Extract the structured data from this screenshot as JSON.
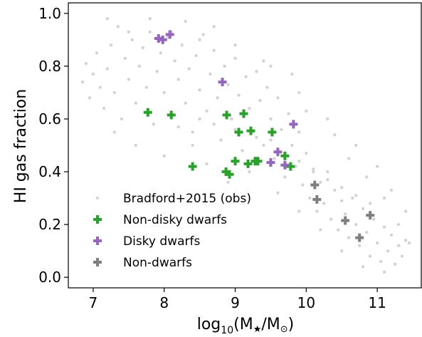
{
  "chart_data": {
    "type": "scatter",
    "xlabel_base": "log",
    "xlabel_sub": "10",
    "xlabel_rest": "(M",
    "xlabel_star": "★",
    "xlabel_slash": "/M",
    "xlabel_sun": "⊙",
    "xlabel_close": ")",
    "ylabel": "HI gas fraction",
    "xlim": [
      6.65,
      11.62
    ],
    "ylim": [
      -0.04,
      1.04
    ],
    "xticks": [
      7,
      8,
      9,
      10,
      11
    ],
    "xtick_labels": [
      "7",
      "8",
      "9",
      "10",
      "11"
    ],
    "yticks": [
      0.0,
      0.2,
      0.4,
      0.6,
      0.8,
      1.0
    ],
    "ytick_labels": [
      "0.0",
      "0.2",
      "0.4",
      "0.6",
      "0.8",
      "1.0"
    ],
    "legend_position": "lower-left",
    "series": [
      {
        "name": "Bradford+2015 (obs)",
        "marker": "dot",
        "color": "#d3d3d3",
        "points": [
          [
            6.85,
            0.74
          ],
          [
            6.9,
            0.81
          ],
          [
            6.95,
            0.68
          ],
          [
            7.0,
            0.77
          ],
          [
            7.05,
            0.85
          ],
          [
            7.1,
            0.72
          ],
          [
            7.15,
            0.64
          ],
          [
            7.2,
            0.79
          ],
          [
            7.25,
            0.88
          ],
          [
            7.3,
            0.7
          ],
          [
            7.35,
            0.95
          ],
          [
            7.4,
            0.6
          ],
          [
            7.45,
            0.83
          ],
          [
            7.5,
            0.75
          ],
          [
            7.55,
            0.9
          ],
          [
            7.6,
            0.66
          ],
          [
            7.65,
            0.8
          ],
          [
            7.7,
            0.87
          ],
          [
            7.75,
            0.72
          ],
          [
            7.8,
            0.93
          ],
          [
            7.85,
            0.58
          ],
          [
            7.9,
            0.78
          ],
          [
            7.95,
            0.85
          ],
          [
            8.0,
            0.7
          ],
          [
            8.05,
            0.91
          ],
          [
            8.1,
            0.62
          ],
          [
            8.15,
            0.82
          ],
          [
            8.2,
            0.75
          ],
          [
            8.25,
            0.88
          ],
          [
            8.3,
            0.66
          ],
          [
            8.35,
            0.79
          ],
          [
            8.4,
            0.55
          ],
          [
            8.45,
            0.84
          ],
          [
            8.5,
            0.71
          ],
          [
            8.55,
            0.92
          ],
          [
            8.6,
            0.63
          ],
          [
            8.65,
            0.77
          ],
          [
            8.7,
            0.86
          ],
          [
            8.75,
            0.68
          ],
          [
            8.8,
            0.52
          ],
          [
            8.85,
            0.8
          ],
          [
            8.9,
            0.73
          ],
          [
            8.95,
            0.6
          ],
          [
            9.0,
            0.83
          ],
          [
            9.05,
            0.69
          ],
          [
            9.1,
            0.48
          ],
          [
            9.15,
            0.76
          ],
          [
            9.2,
            0.64
          ],
          [
            9.25,
            0.55
          ],
          [
            9.3,
            0.78
          ],
          [
            9.35,
            0.67
          ],
          [
            9.4,
            0.5
          ],
          [
            9.45,
            0.72
          ],
          [
            9.5,
            0.6
          ],
          [
            9.55,
            0.45
          ],
          [
            9.6,
            0.68
          ],
          [
            9.65,
            0.56
          ],
          [
            9.7,
            0.38
          ],
          [
            9.75,
            0.62
          ],
          [
            9.8,
            0.5
          ],
          [
            9.85,
            0.42
          ],
          [
            9.9,
            0.55
          ],
          [
            9.95,
            0.35
          ],
          [
            10.0,
            0.47
          ],
          [
            10.05,
            0.3
          ],
          [
            10.1,
            0.41
          ],
          [
            10.15,
            0.25
          ],
          [
            10.2,
            0.36
          ],
          [
            10.25,
            0.28
          ],
          [
            10.3,
            0.4
          ],
          [
            10.35,
            0.22
          ],
          [
            10.4,
            0.33
          ],
          [
            10.45,
            0.18
          ],
          [
            10.5,
            0.29
          ],
          [
            10.55,
            0.24
          ],
          [
            10.6,
            0.15
          ],
          [
            10.65,
            0.3
          ],
          [
            10.7,
            0.2
          ],
          [
            10.75,
            0.12
          ],
          [
            10.8,
            0.26
          ],
          [
            10.85,
            0.17
          ],
          [
            10.9,
            0.08
          ],
          [
            10.95,
            0.22
          ],
          [
            11.0,
            0.13
          ],
          [
            11.05,
            0.06
          ],
          [
            11.1,
            0.19
          ],
          [
            11.15,
            0.1
          ],
          [
            11.2,
            0.16
          ],
          [
            11.25,
            0.05
          ],
          [
            11.3,
            0.12
          ],
          [
            11.35,
            0.08
          ],
          [
            11.4,
            0.14
          ],
          [
            7.8,
            0.98
          ],
          [
            8.3,
            0.97
          ],
          [
            8.7,
            0.95
          ],
          [
            9.4,
            0.82
          ],
          [
            9.9,
            0.7
          ],
          [
            10.3,
            0.6
          ],
          [
            10.7,
            0.5
          ],
          [
            11.0,
            0.42
          ],
          [
            11.2,
            0.33
          ],
          [
            11.4,
            0.25
          ],
          [
            7.3,
            0.55
          ],
          [
            7.6,
            0.5
          ],
          [
            8.0,
            0.46
          ],
          [
            8.4,
            0.5
          ],
          [
            8.6,
            0.43
          ],
          [
            8.9,
            0.36
          ],
          [
            9.2,
            0.4
          ],
          [
            9.6,
            0.32
          ],
          [
            9.9,
            0.25
          ],
          [
            10.2,
            0.18
          ],
          [
            10.5,
            0.1
          ],
          [
            10.8,
            0.04
          ],
          [
            11.1,
            0.02
          ],
          [
            8.2,
            0.57
          ],
          [
            8.5,
            0.6
          ],
          [
            8.7,
            0.58
          ],
          [
            9.0,
            0.56
          ],
          [
            9.3,
            0.53
          ],
          [
            9.5,
            0.52
          ],
          [
            9.7,
            0.47
          ],
          [
            9.9,
            0.44
          ],
          [
            10.1,
            0.4
          ],
          [
            10.3,
            0.37
          ],
          [
            10.5,
            0.34
          ],
          [
            10.7,
            0.31
          ],
          [
            10.9,
            0.28
          ],
          [
            7.2,
            0.98
          ],
          [
            7.5,
            0.93
          ],
          [
            8.1,
            0.93
          ],
          [
            8.5,
            0.9
          ],
          [
            9.0,
            0.88
          ],
          [
            9.5,
            0.8
          ],
          [
            9.8,
            0.77
          ],
          [
            10.0,
            0.63
          ],
          [
            10.4,
            0.54
          ],
          [
            10.6,
            0.45
          ],
          [
            10.85,
            0.38
          ],
          [
            11.1,
            0.3
          ],
          [
            11.3,
            0.2
          ],
          [
            11.45,
            0.13
          ]
        ]
      },
      {
        "name": "Non-disky dwarfs",
        "marker": "plus",
        "color": "#2ca02c",
        "points": [
          [
            7.77,
            0.625
          ],
          [
            8.1,
            0.615
          ],
          [
            8.4,
            0.42
          ],
          [
            8.87,
            0.4
          ],
          [
            8.92,
            0.39
          ],
          [
            8.88,
            0.615
          ],
          [
            9.12,
            0.62
          ],
          [
            9.05,
            0.55
          ],
          [
            9.22,
            0.555
          ],
          [
            9.52,
            0.55
          ],
          [
            9.0,
            0.44
          ],
          [
            9.18,
            0.43
          ],
          [
            9.28,
            0.44
          ],
          [
            9.32,
            0.44
          ],
          [
            9.7,
            0.46
          ],
          [
            9.78,
            0.42
          ]
        ]
      },
      {
        "name": "Disky dwarfs",
        "marker": "plus",
        "color": "#9467bd",
        "points": [
          [
            7.92,
            0.905
          ],
          [
            7.98,
            0.9
          ],
          [
            8.08,
            0.92
          ],
          [
            8.82,
            0.74
          ],
          [
            9.82,
            0.58
          ],
          [
            9.6,
            0.475
          ],
          [
            9.5,
            0.435
          ],
          [
            9.7,
            0.425
          ]
        ]
      },
      {
        "name": "Non-dwarfs",
        "marker": "plus",
        "color": "#7f7f7f",
        "points": [
          [
            10.12,
            0.35
          ],
          [
            10.15,
            0.295
          ],
          [
            10.55,
            0.215
          ],
          [
            10.75,
            0.15
          ],
          [
            10.9,
            0.235
          ]
        ]
      }
    ]
  }
}
